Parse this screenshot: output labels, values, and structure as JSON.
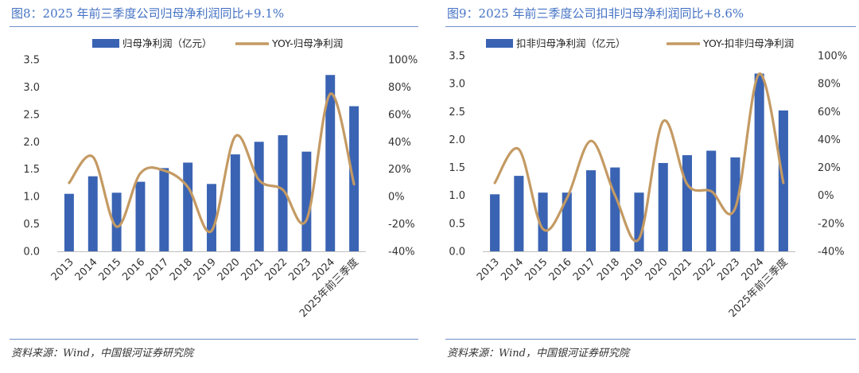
{
  "source_text": "资料来源：Wind，中国银河证券研究院",
  "chart_data": [
    {
      "id": "left",
      "type": "bar+line",
      "title": "图8：2025 年前三季度公司归母净利润同比+9.1%",
      "categories": [
        "2013",
        "2014",
        "2015",
        "2016",
        "2017",
        "2018",
        "2019",
        "2020",
        "2021",
        "2022",
        "2023",
        "2024",
        "2025年前三季度"
      ],
      "series": [
        {
          "name": "归母净利润（亿元）",
          "type": "bar",
          "axis": "left",
          "color": "#3a63b3",
          "values": [
            1.05,
            1.37,
            1.07,
            1.27,
            1.52,
            1.62,
            1.23,
            1.77,
            2.0,
            2.12,
            1.82,
            3.22,
            2.65
          ]
        },
        {
          "name": "YOY-归母净利润",
          "type": "line",
          "axis": "right",
          "color": "#c49a63",
          "values": [
            10,
            29,
            -22,
            17,
            19,
            7,
            -25,
            44,
            12,
            5,
            -17,
            75,
            9
          ]
        }
      ],
      "yleft": {
        "min": 0,
        "max": 3.5,
        "ticks": [
          "0.0",
          "0.5",
          "1.0",
          "1.5",
          "2.0",
          "2.5",
          "3.0",
          "3.5"
        ]
      },
      "yright": {
        "min": -40,
        "max": 100,
        "ticks": [
          "-40%",
          "-20%",
          "0%",
          "20%",
          "40%",
          "60%",
          "80%",
          "100%"
        ]
      },
      "legend_position": "top"
    },
    {
      "id": "right",
      "type": "bar+line",
      "title": "图9：2025 年前三季度公司扣非归母净利润同比+8.6%",
      "categories": [
        "2013",
        "2014",
        "2015",
        "2016",
        "2017",
        "2018",
        "2019",
        "2020",
        "2021",
        "2022",
        "2023",
        "2024",
        "2025年前三季度"
      ],
      "series": [
        {
          "name": "扣非归母净利润（亿元）",
          "type": "bar",
          "axis": "left",
          "color": "#3a63b3",
          "values": [
            1.02,
            1.35,
            1.05,
            1.05,
            1.45,
            1.5,
            1.05,
            1.58,
            1.72,
            1.8,
            1.68,
            3.18,
            2.52
          ]
        },
        {
          "name": "YOY-扣非归母净利润",
          "type": "line",
          "axis": "right",
          "color": "#c49a63",
          "values": [
            9,
            33,
            -24,
            -2,
            39,
            0,
            -31,
            53,
            8,
            3,
            -9,
            87,
            9
          ]
        }
      ],
      "yleft": {
        "min": 0,
        "max": 3.5,
        "ticks": [
          "0.0",
          "0.5",
          "1.0",
          "1.5",
          "2.0",
          "2.5",
          "3.0",
          "3.5"
        ]
      },
      "yright": {
        "min": -40,
        "max": 100,
        "ticks": [
          "-40%",
          "-20%",
          "0%",
          "20%",
          "40%",
          "60%",
          "80%",
          "100%"
        ]
      },
      "legend_position": "top"
    }
  ]
}
